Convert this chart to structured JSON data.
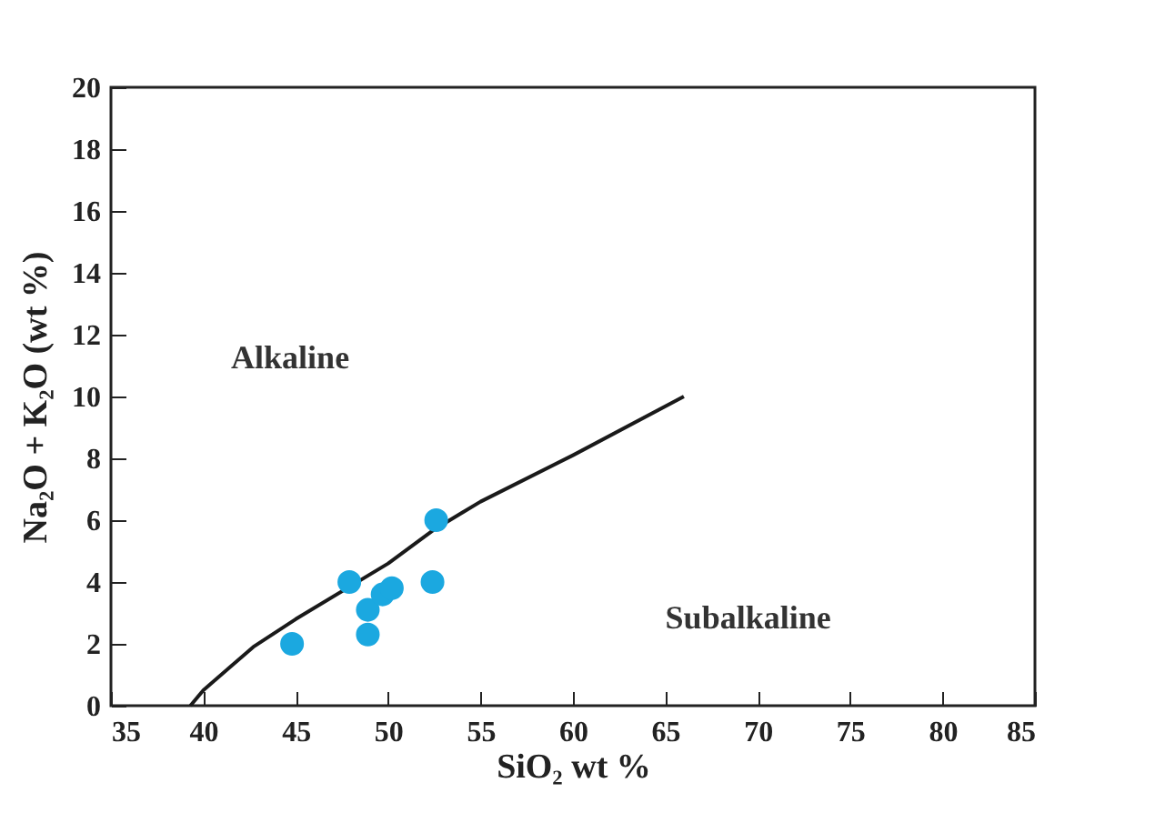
{
  "chart_data": {
    "type": "scatter",
    "xlabel": "SiO₂ wt %",
    "ylabel": "Na₂O + K₂O (wt %)",
    "xlim": [
      35,
      85
    ],
    "xticks": [
      35,
      40,
      45,
      50,
      55,
      60,
      65,
      70,
      75,
      80,
      85
    ],
    "ylim": [
      0,
      20
    ],
    "yticks": [
      0,
      2,
      4,
      6,
      8,
      10,
      12,
      14,
      16,
      18,
      20
    ],
    "grid": false,
    "annotations": [
      "Alkaline",
      "Subalkaline"
    ],
    "series": [
      {
        "type": "line",
        "color": "#1a1a1a",
        "line_style": "solid",
        "x": [
          39.3,
          40,
          42.7,
          45,
          50,
          52.5,
          55,
          60,
          66
        ],
        "values": [
          0,
          0.5,
          1.9,
          2.8,
          4.6,
          5.7,
          6.6,
          8.1,
          10
        ]
      },
      {
        "type": "scatter",
        "marker": "circle",
        "color": "#1ba8e0",
        "x": [
          44.8,
          47.9,
          52.6,
          52.4,
          48.9,
          48.9,
          49.7,
          50.2
        ],
        "values": [
          2.0,
          4.0,
          6.0,
          4.0,
          3.1,
          2.3,
          3.6,
          3.8
        ]
      }
    ]
  }
}
